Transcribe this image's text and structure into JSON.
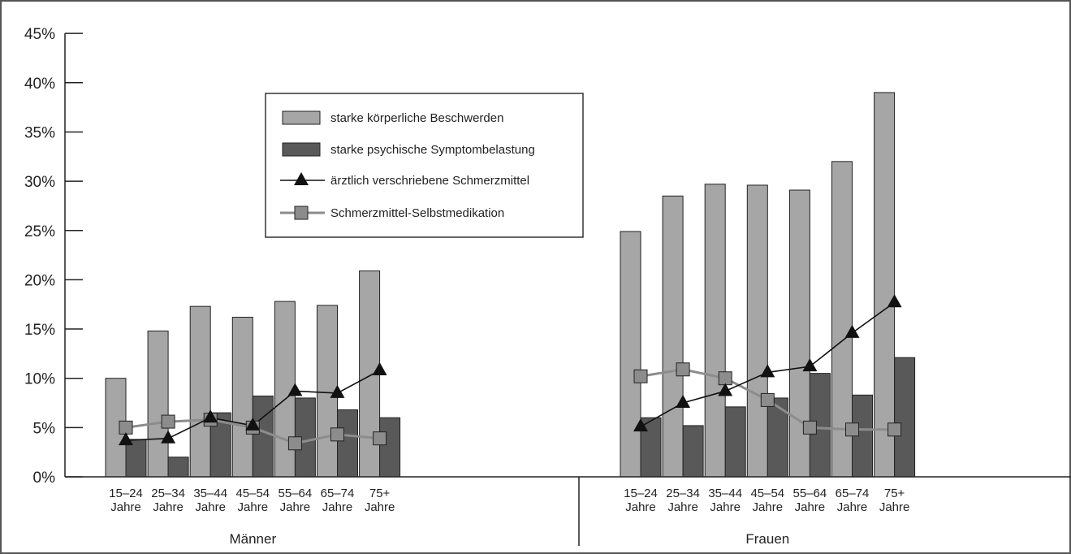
{
  "chart_data": {
    "type": "bar",
    "title": "",
    "xlabel": "",
    "ylabel": "",
    "ylim": [
      0,
      45
    ],
    "yticks": [
      0,
      5,
      10,
      15,
      20,
      25,
      30,
      35,
      40,
      45
    ],
    "ytick_suffix": "%",
    "grid": false,
    "legend_position": "top-center",
    "groups": [
      {
        "name": "Männer",
        "categories": [
          [
            "15–24",
            "Jahre"
          ],
          [
            "25–34",
            "Jahre"
          ],
          [
            "35–44",
            "Jahre"
          ],
          [
            "45–54",
            "Jahre"
          ],
          [
            "55–64",
            "Jahre"
          ],
          [
            "65–74",
            "Jahre"
          ],
          [
            "75+",
            "Jahre"
          ]
        ],
        "koerperlich": [
          10.0,
          14.8,
          17.3,
          16.2,
          17.8,
          17.4,
          20.9
        ],
        "psychisch": [
          3.8,
          2.0,
          6.5,
          8.2,
          8.0,
          6.8,
          6.0
        ],
        "verschrieben": [
          3.7,
          3.9,
          6.0,
          5.2,
          8.7,
          8.5,
          10.8
        ],
        "selbstmedikation": [
          5.0,
          5.6,
          5.8,
          5.0,
          3.4,
          4.3,
          3.9
        ]
      },
      {
        "name": "Frauen",
        "categories": [
          [
            "15–24",
            "Jahre"
          ],
          [
            "25–34",
            "Jahre"
          ],
          [
            "35–44",
            "Jahre"
          ],
          [
            "45–54",
            "Jahre"
          ],
          [
            "55–64",
            "Jahre"
          ],
          [
            "65–74",
            "Jahre"
          ],
          [
            "75+",
            "Jahre"
          ]
        ],
        "koerperlich": [
          24.9,
          28.5,
          29.7,
          29.6,
          29.1,
          32.0,
          39.0
        ],
        "psychisch": [
          6.0,
          5.2,
          7.1,
          8.0,
          10.5,
          8.3,
          12.1
        ],
        "verschrieben": [
          5.1,
          7.5,
          8.7,
          10.6,
          11.2,
          14.6,
          17.7
        ],
        "selbstmedikation": [
          10.2,
          10.9,
          10.0,
          7.8,
          5.0,
          4.8,
          4.8
        ]
      }
    ],
    "series": [
      {
        "key": "koerperlich",
        "name": "starke körperliche Beschwerden",
        "kind": "bar",
        "color": "#a6a6a6"
      },
      {
        "key": "psychisch",
        "name": "starke psychische Symptombelastung",
        "kind": "bar",
        "color": "#595959"
      },
      {
        "key": "verschrieben",
        "name": "ärztlich verschriebene Schmerzmittel",
        "kind": "line",
        "marker": "triangle",
        "color": "#111111"
      },
      {
        "key": "selbstmedikation",
        "name": "Schmerzmittel-Selbstmedikation",
        "kind": "line",
        "marker": "square",
        "color": "#8c8c8c"
      }
    ]
  }
}
